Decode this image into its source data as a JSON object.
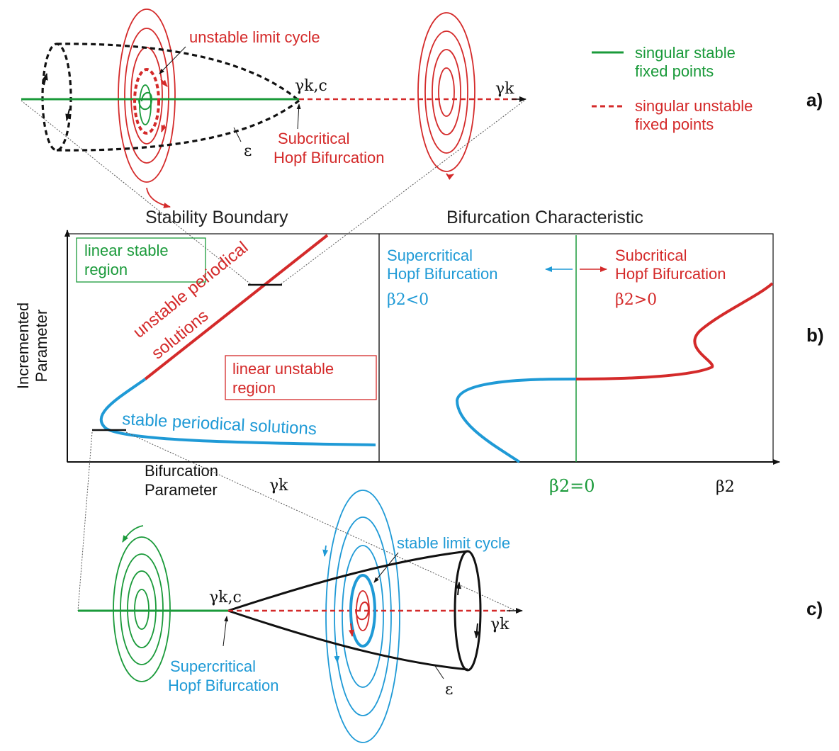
{
  "colors": {
    "stable_green": "#1a9a3a",
    "unstable_red": "#d42a2a",
    "supercritical_blue": "#1f9ad6",
    "boundary_black": "#111111"
  },
  "legend": {
    "stable_line1": "singular stable",
    "stable_line2": "fixed points",
    "unstable_line1": "singular unstable",
    "unstable_line2": "fixed points"
  },
  "panel_a": {
    "letter": "a)",
    "unstable_limit_cycle": "unstable limit cycle",
    "critical_param": "γk,c",
    "axis_param": "γk",
    "epsilon": "ε",
    "hopf_line1": "Subcritical",
    "hopf_line2": "Hopf Bifurcation"
  },
  "panel_b": {
    "letter": "b)",
    "left_title": "Stability Boundary",
    "right_title": "Bifurcation Characteristic",
    "y_label_line1": "Incremented",
    "y_label_line2": "Parameter",
    "x_label_line1": "Bifurcation",
    "x_label_line2": "Parameter",
    "x_param": "γk",
    "linear_stable_line1": "linear stable",
    "linear_stable_line2": "region",
    "linear_unstable_line1": "linear unstable",
    "linear_unstable_line2": "region",
    "unstable_periodical_line1": "unstable periodical",
    "unstable_periodical_line2": "solutions",
    "stable_periodical": "stable periodical solutions",
    "supercritical_line1": "Supercritical",
    "supercritical_line2": "Hopf Bifurcation",
    "supercritical_cond": "β2<0",
    "subcritical_line1": "Subcritical",
    "subcritical_line2": "Hopf Bifurcation",
    "subcritical_cond": "β2>0",
    "beta_zero": "β2=0",
    "beta_axis": "β2"
  },
  "panel_c": {
    "letter": "c)",
    "stable_limit_cycle": "stable limit cycle",
    "critical_param": "γk,c",
    "axis_param": "γk",
    "epsilon": "ε",
    "hopf_line1": "Supercritical",
    "hopf_line2": "Hopf Bifurcation"
  }
}
